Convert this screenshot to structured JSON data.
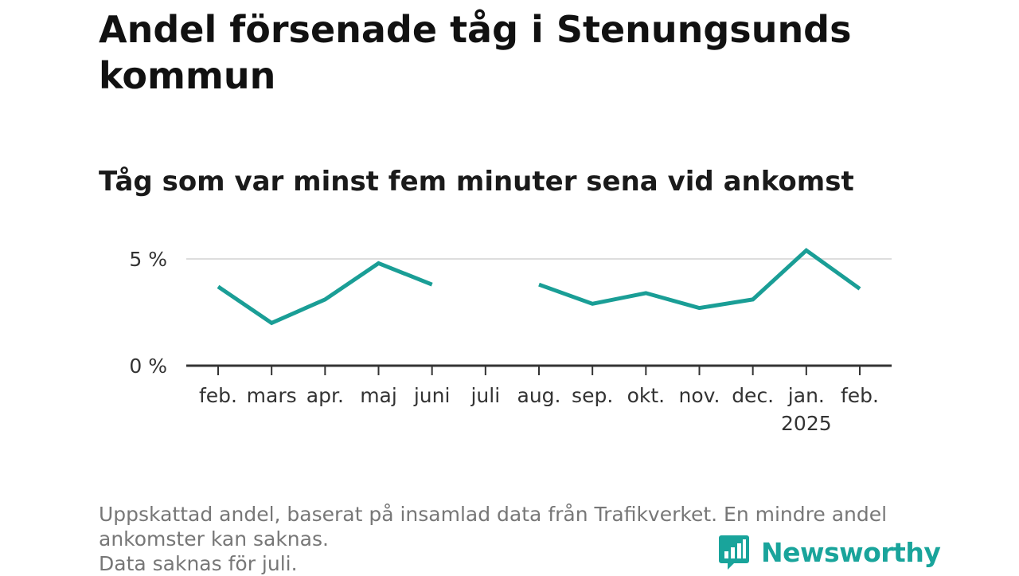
{
  "header": {
    "title": "Andel försenade tåg i Stenungsunds kommun",
    "subtitle": "Tåg som var minst fem minuter sena vid ankomst"
  },
  "chart_data": {
    "type": "line",
    "categories": [
      "feb.",
      "mars",
      "apr.",
      "maj",
      "juni",
      "juli",
      "aug.",
      "sep.",
      "okt.",
      "nov.",
      "dec.",
      "jan.",
      "feb."
    ],
    "category_sublabels": [
      "",
      "",
      "",
      "",
      "",
      "",
      "",
      "",
      "",
      "",
      "",
      "2025",
      ""
    ],
    "series": [
      {
        "values": [
          3.7,
          2.0,
          3.1,
          4.8,
          3.8,
          null,
          3.8,
          2.9,
          3.4,
          2.7,
          3.1,
          5.4,
          3.6
        ]
      }
    ],
    "y_ticks": [
      0,
      5
    ],
    "y_tick_labels": [
      "0 %",
      "5 %"
    ],
    "ylim": [
      0,
      5
    ],
    "grid": true,
    "line_color": "#1a9e96"
  },
  "footnote": {
    "line1": "Uppskattad andel, baserat på insamlad data från Trafikverket. En mindre andel",
    "line2": "ankomster kan saknas.",
    "line3": "Data saknas för juli."
  },
  "brand": {
    "name": "Newsworthy",
    "icon": "newsworthy-logo-icon",
    "color": "#19a49b"
  }
}
